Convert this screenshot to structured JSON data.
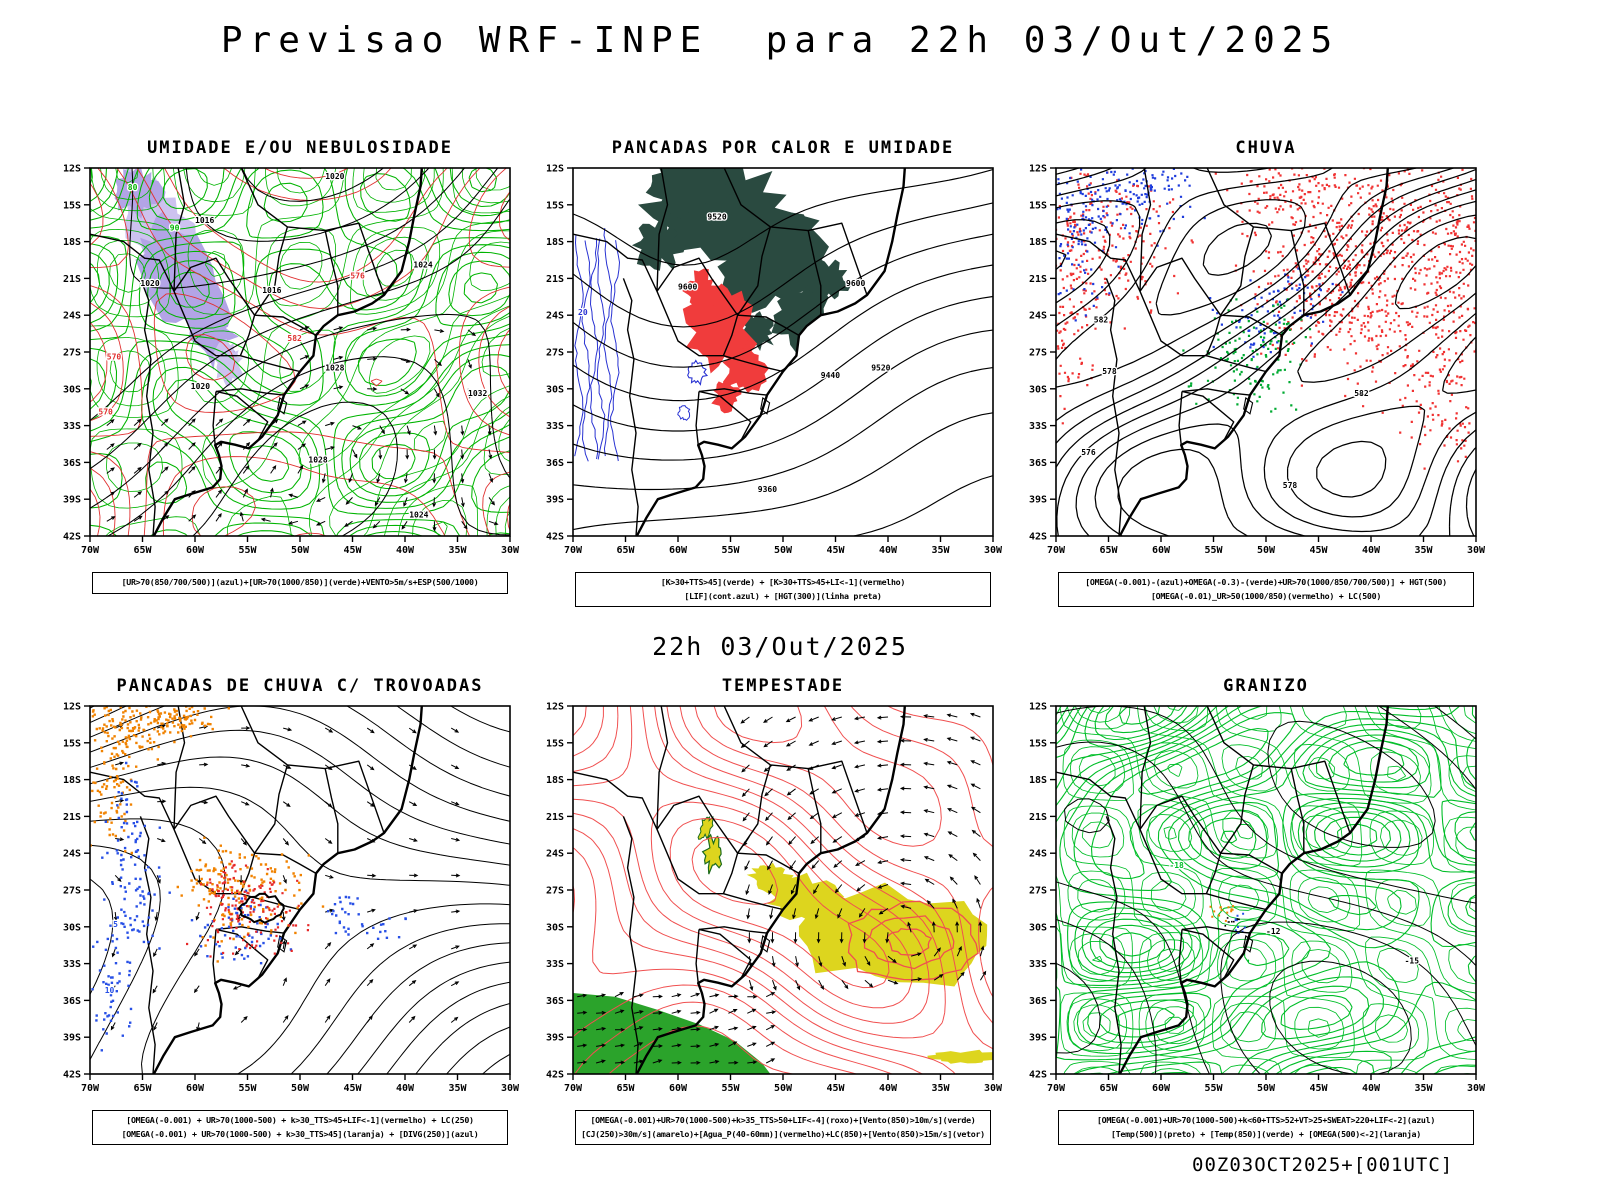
{
  "page": {
    "title": "Previsao WRF-INPE  para 22h 03/Out/2025",
    "subtitle": "22h 03/Out/2025",
    "footer": "00Z03OCT2025+[001UTC]",
    "background": "#ffffff"
  },
  "axes": {
    "lat_ticks": [
      "12S",
      "15S",
      "18S",
      "21S",
      "24S",
      "27S",
      "30S",
      "33S",
      "36S",
      "39S",
      "42S"
    ],
    "lon_ticks": [
      "70W",
      "65W",
      "60W",
      "55W",
      "50W",
      "45W",
      "40W",
      "35W",
      "30W"
    ]
  },
  "panels": [
    {
      "id": "umidade",
      "title": "UMIDADE E/OU NEBULOSIDADE",
      "caption": [
        "[UR>70(850/700/500)](azul)+[UR>70(1000/850)](verde)+VENTO>5m/s+ESP(500/1000)"
      ],
      "colors": {
        "green": "#00b400",
        "red": "#e03030",
        "black": "#000000",
        "shade": "#b3a4e6",
        "shade_light": "#cdc2ef"
      },
      "map_labels": {
        "black": [
          "1016",
          "1020",
          "1020",
          "1024",
          "1016",
          "1028",
          "1020",
          "1032",
          "1028",
          "1024"
        ],
        "red": [
          "570",
          "576",
          "582",
          "570"
        ],
        "green": [
          "80",
          "90"
        ]
      }
    },
    {
      "id": "pancadas-calor",
      "title": "PANCADAS POR CALOR E UMIDADE",
      "caption": [
        "[K>30+TTS>45](verde) + [K>30+TTS>45+LI<-1](vermelho)",
        "[LIF](cont.azul) + [HGT(300)](linha preta)"
      ],
      "colors": {
        "dark": "#2a4a40",
        "red": "#f03c3c",
        "blue": "#2832d2",
        "black": "#000000"
      },
      "map_labels": {
        "black": [
          "9520",
          "9600",
          "9600",
          "9520",
          "9440",
          "9360"
        ],
        "blue": [
          "20"
        ]
      }
    },
    {
      "id": "chuva",
      "title": "CHUVA",
      "caption": [
        "[OMEGA(-0.001)-(azul)+OMEGA(-0.3)-(verde)+UR>70(1000/850/700/500)] + HGT(500)",
        "[OMEGA(-0.01)_UR>50(1000/850)(vermelho) + LC(500)"
      ],
      "colors": {
        "red": "#f03232",
        "blue": "#1e3cdc",
        "green": "#00aa32",
        "black": "#000000"
      },
      "map_labels": {
        "black": [
          "582",
          "578",
          "582",
          "578",
          "576"
        ]
      }
    },
    {
      "id": "trovoadas",
      "title": "PANCADAS DE CHUVA C/ TROVOADAS",
      "caption": [
        "[OMEGA(-0.001) + UR>70(1000-500) + k>30_TTS>45+LIF<-1](vermelho) + LC(250)",
        "[OMEGA(-0.001) + UR>70(1000-500) + k>30_TTS>45](laranja) + [DIVG(250)](azul)"
      ],
      "colors": {
        "orange": "#f08200",
        "blue": "#2850e6",
        "red": "#e62828",
        "black": "#000000"
      },
      "map_labels": {
        "blue": [
          "10",
          "5"
        ]
      }
    },
    {
      "id": "tempestade",
      "title": "TEMPESTADE",
      "caption": [
        "[OMEGA(-0.001)+UR>70(1000-500)+k>35_TTS>50+LIF<-4](roxo)+[Vento(850)>10m/s](verde)",
        "[CJ(250)>30m/s](amarelo)+[Agua_P(40-60mm)](vermelho)+LC(850)+[Vento(850)>15m/s](vetor)"
      ],
      "colors": {
        "red": "#f05050",
        "yellow": "#ddd51e",
        "green": "#2ba32b",
        "black": "#000000"
      },
      "map_labels": {}
    },
    {
      "id": "granizo",
      "title": "GRANIZO",
      "caption": [
        "[OMEGA(-0.001)+UR>70(1000-500)+k<60+TTS>52+VT>25+SWEAT>220+LIF<-2](azul)",
        "[Temp(500)](preto) + [Temp(850)](verde) + [OMEGA(500)<-2](laranja)"
      ],
      "colors": {
        "green": "#00be28",
        "black": "#000000",
        "orange": "#f08200",
        "blue": "#2850e6"
      },
      "map_labels": {
        "black": [
          "-12",
          "-15"
        ],
        "green": [
          "-18"
        ]
      }
    }
  ]
}
